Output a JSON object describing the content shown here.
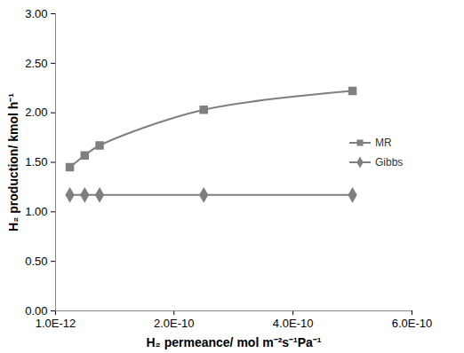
{
  "chart_data": {
    "type": "line",
    "x_label": "H₂ permeance/ mol m⁻²s⁻¹Pa⁻¹",
    "y_label": "H₂ production/ kmol h⁻¹",
    "x": [
      2.5e-11,
      5e-11,
      7.5e-11,
      2.5e-10,
      5e-10
    ],
    "series": [
      {
        "name": "MR",
        "color": "#7f7f7f",
        "marker": "square",
        "line_style": "solid",
        "values": [
          1.45,
          1.57,
          1.67,
          2.03,
          2.22
        ]
      },
      {
        "name": "Gibbs",
        "color": "#7f7f7f",
        "marker": "diamond",
        "line_style": "solid",
        "values": [
          1.17,
          1.17,
          1.17,
          1.17,
          1.17
        ]
      }
    ],
    "xlim": [
      1e-12,
      6e-10
    ],
    "xticks": [
      {
        "value": 1e-12,
        "label": "1.0E-12"
      },
      {
        "value": 2e-10,
        "label": "2.0E-10"
      },
      {
        "value": 4e-10,
        "label": "4.0E-10"
      },
      {
        "value": 6e-10,
        "label": "6.0E-10"
      }
    ],
    "ylim": [
      0,
      3
    ],
    "yticks": [
      {
        "value": 0,
        "label": "0.00"
      },
      {
        "value": 0.5,
        "label": "0.50"
      },
      {
        "value": 1,
        "label": "1.00"
      },
      {
        "value": 1.5,
        "label": "1.50"
      },
      {
        "value": 2,
        "label": "2.00"
      },
      {
        "value": 2.5,
        "label": "2.50"
      },
      {
        "value": 3,
        "label": "3.00"
      }
    ],
    "grid": false,
    "legend": "right"
  }
}
